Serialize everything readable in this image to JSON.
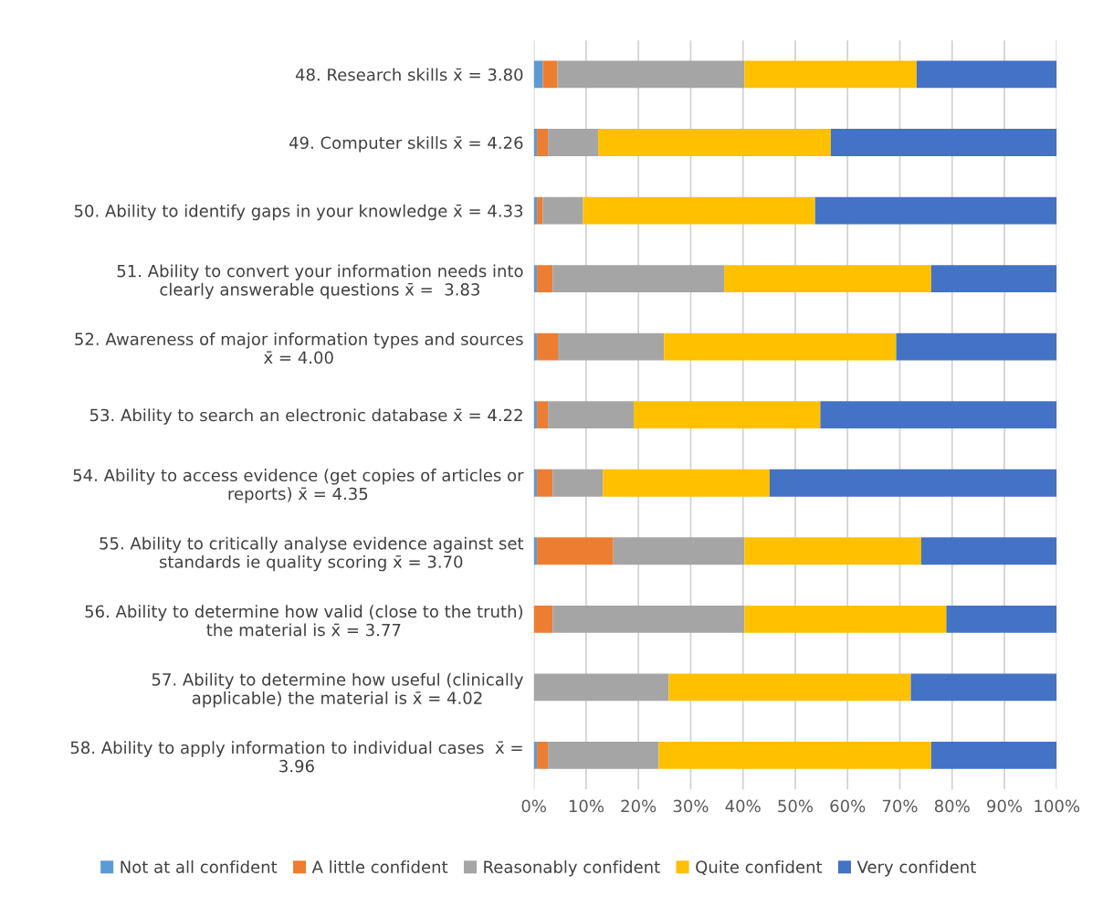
{
  "chart_data": {
    "type": "bar",
    "orientation": "horizontal",
    "stacked": true,
    "categories": [
      "48. Research skills x̄ = 3.80",
      "49. Computer skills x̄ = 4.26",
      "50. Ability to identify gaps in your knowledge x̄ = 4.33",
      "51. Ability to convert your information needs into\nclearly answerable questions x̄ =  3.83",
      "52. Awareness of major information types and sources\nx̄ = 4.00",
      "53. Ability to search an electronic database x̄ = 4.22",
      "54. Ability to access evidence (get copies of articles or\nreports) x̄ = 4.35",
      "55. Ability to critically analyse evidence against set\nstandards ie quality scoring x̄ = 3.70",
      "56. Ability to determine how valid (close to the truth)\nthe material is x̄ = 3.77",
      "57. Ability to determine how useful (clinically\napplicable) the material is x̄ = 4.02",
      "58. Ability to apply information to individual cases  x̄ =\n3.96"
    ],
    "series": [
      {
        "name": "Not at all confident",
        "color": "#5b9bd5",
        "values": [
          1.7,
          0.6,
          0.6,
          0.6,
          0.6,
          0.6,
          0.6,
          0.6,
          0,
          0,
          0.6
        ]
      },
      {
        "name": "A little confident",
        "color": "#ed7d31",
        "values": [
          2.8,
          2.1,
          1.1,
          3.0,
          4.0,
          2.1,
          3.0,
          14.6,
          3.6,
          0,
          2.1
        ]
      },
      {
        "name": "Reasonably confident",
        "color": "#a5a5a5",
        "values": [
          35.8,
          9.6,
          7.7,
          32.8,
          20.3,
          16.4,
          9.6,
          25.1,
          36.7,
          25.8,
          21.2
        ]
      },
      {
        "name": "Quite confident",
        "color": "#ffc000",
        "values": [
          32.9,
          44.5,
          44.4,
          39.6,
          44.4,
          35.7,
          31.9,
          33.8,
          38.6,
          46.3,
          52.1
        ]
      },
      {
        "name": "Very confident",
        "color": "#4472c4",
        "values": [
          26.8,
          43.2,
          46.2,
          24.0,
          30.7,
          45.2,
          54.9,
          25.9,
          21.1,
          27.9,
          24.0
        ]
      }
    ],
    "xlim": [
      0,
      100
    ],
    "xticks": [
      {
        "value": 0,
        "label": "0%"
      },
      {
        "value": 10,
        "label": "10%"
      },
      {
        "value": 20,
        "label": "20%"
      },
      {
        "value": 30,
        "label": "30%"
      },
      {
        "value": 40,
        "label": "40%"
      },
      {
        "value": 50,
        "label": "50%"
      },
      {
        "value": 60,
        "label": "60%"
      },
      {
        "value": 70,
        "label": "70%"
      },
      {
        "value": 80,
        "label": "80%"
      },
      {
        "value": 90,
        "label": "90%"
      },
      {
        "value": 100,
        "label": "100%"
      }
    ],
    "grid": "x",
    "legend": "bottom"
  }
}
